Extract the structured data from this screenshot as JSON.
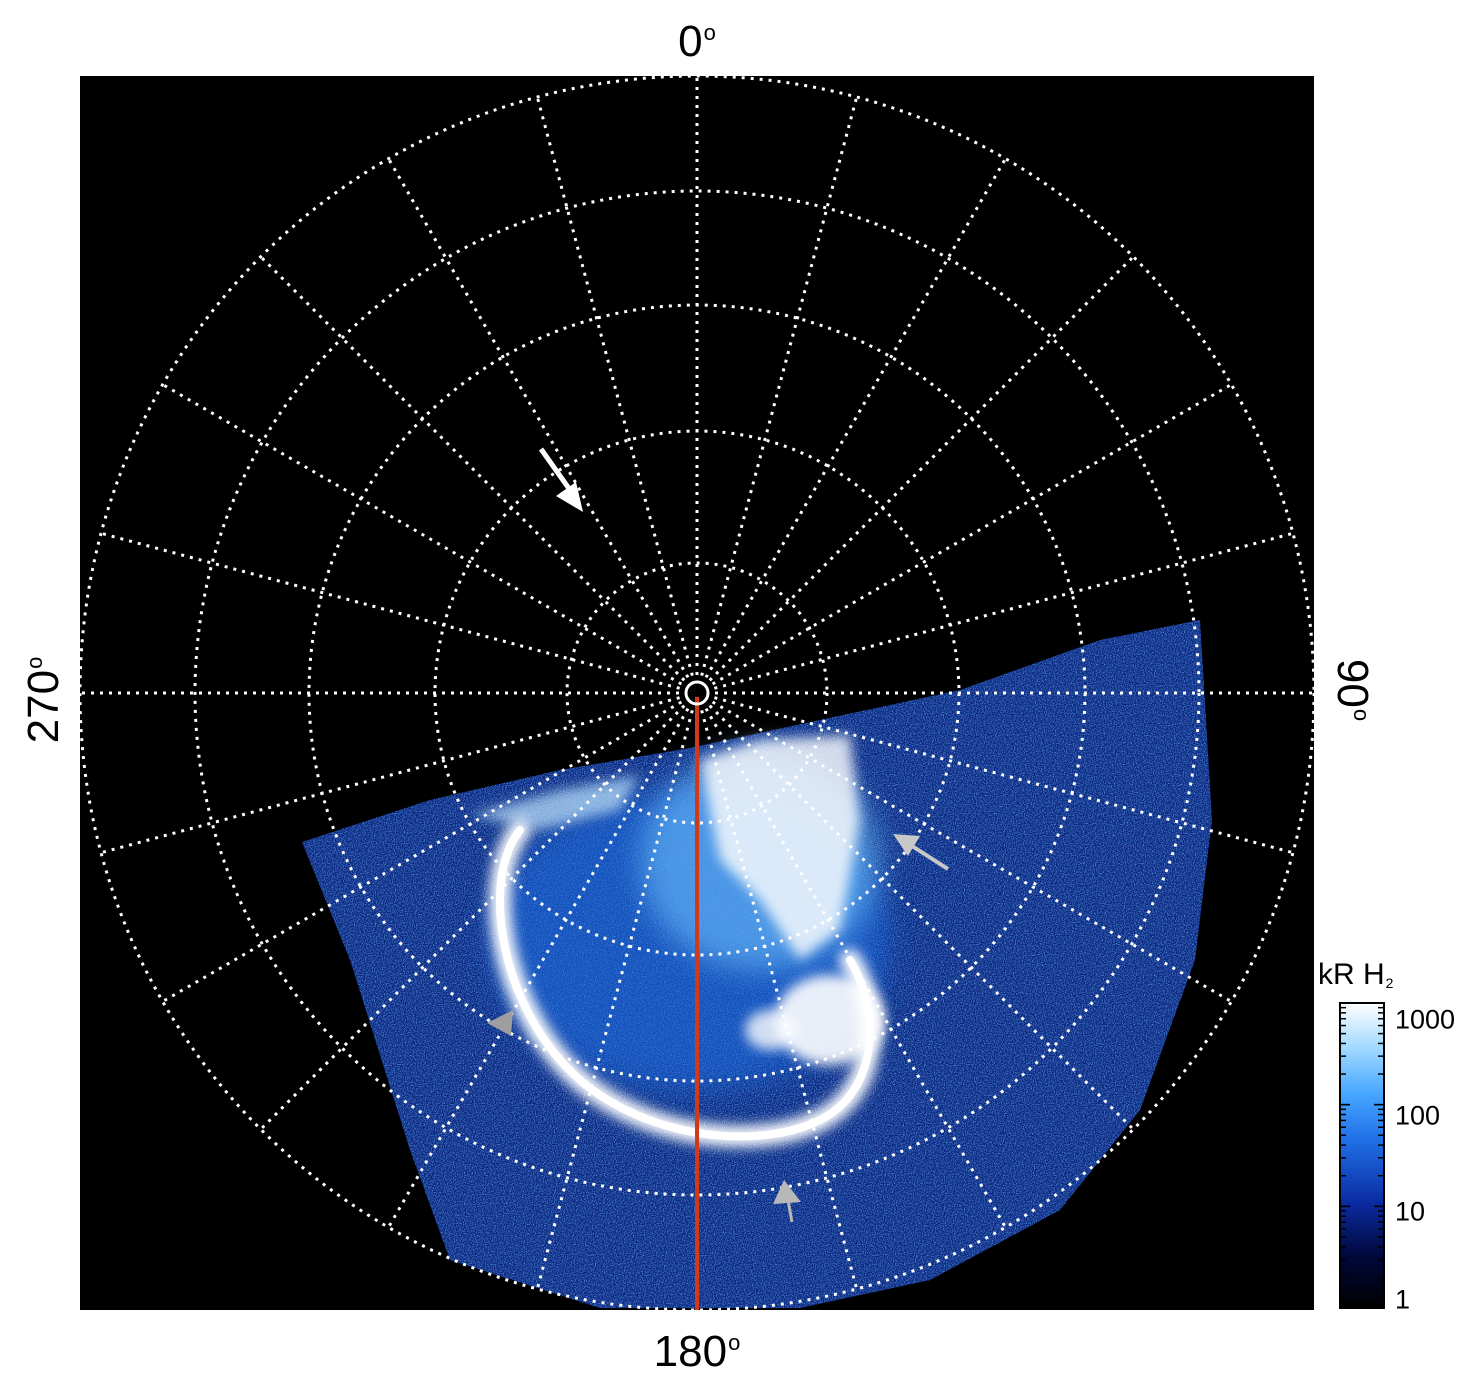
{
  "longitude_labels": {
    "top": "0",
    "right": "90",
    "bottom": "180",
    "left": "270",
    "degree_symbol": "o"
  },
  "colorbar": {
    "title": "kR H",
    "title_subscript": "2",
    "scale": "log",
    "range": [
      1,
      1000
    ],
    "ticks": [
      "1000",
      "100",
      "10",
      "1"
    ],
    "colors": [
      "#000000",
      "#00083a",
      "#0a2aa0",
      "#1f6fe6",
      "#45a6ff",
      "#9fd8ff",
      "#ffffff"
    ]
  },
  "image": {
    "background": "#000000",
    "grid_color": "#ffffff",
    "meridian_line_color": "#d03a1a",
    "arrow_colors": [
      "#ffffff",
      "#c0c0c0",
      "#9e9e9e"
    ]
  }
}
